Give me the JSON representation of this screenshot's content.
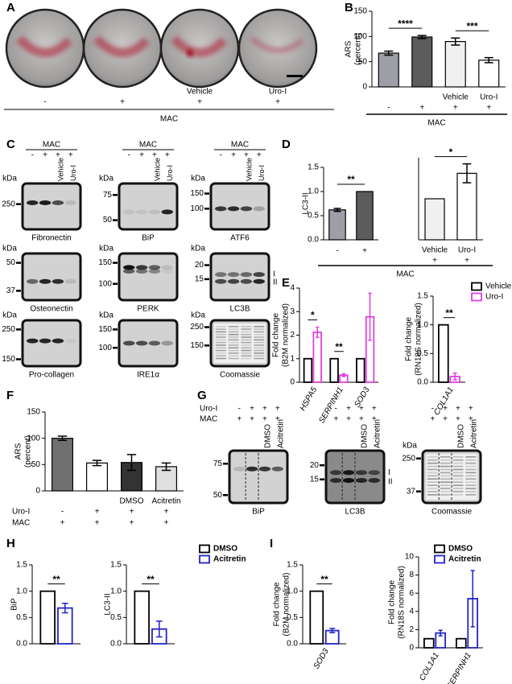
{
  "panels": {
    "letters": [
      "A",
      "B",
      "C",
      "D",
      "E",
      "F",
      "G",
      "H",
      "I"
    ],
    "A": {
      "lanes": [
        "-",
        "+",
        "+",
        "+"
      ],
      "treatments": [
        "Vehicle",
        "Uro-I"
      ],
      "group_label": "MAC"
    },
    "C": {
      "columns": [
        {
          "group_label": "MAC",
          "lanes": [
            "-",
            "+",
            "+",
            "+"
          ],
          "treatments": [
            "Vehicle",
            "Uro-I"
          ]
        },
        {
          "group_label": "MAC",
          "lanes": [
            "-",
            "+",
            "+",
            "+"
          ],
          "treatments": [
            "Vehicle",
            "Uro-I"
          ]
        },
        {
          "group_label": "MAC",
          "lanes": [
            "-",
            "+",
            "+",
            "+"
          ],
          "treatments": [
            "Vehicle",
            "Uro-I"
          ]
        }
      ],
      "blots": [
        {
          "label": "Fibronectin",
          "unit": "kDa",
          "markers": [
            "250"
          ]
        },
        {
          "label": "BiP",
          "unit": "kDa",
          "markers": [
            "75",
            "50"
          ]
        },
        {
          "label": "ATF6",
          "unit": "kDa",
          "markers": [
            "150",
            "100"
          ]
        },
        {
          "label": "Osteonectin",
          "unit": "kDa",
          "markers": [
            "50",
            "37"
          ]
        },
        {
          "label": "PERK",
          "unit": "kDa",
          "markers": [
            "150",
            "100"
          ]
        },
        {
          "label": "LC3B",
          "unit": "kDa",
          "markers": [
            "20",
            "15"
          ],
          "side_labels": [
            "I",
            "II"
          ]
        },
        {
          "label": "Pro-collagen",
          "unit": "kDa",
          "markers": [
            "250",
            "150"
          ]
        },
        {
          "label": "IRE1α",
          "unit": "kDa",
          "markers": [
            "150",
            "100"
          ]
        },
        {
          "label": "Coomassie",
          "unit": "kDa",
          "markers": [
            "250",
            "150"
          ]
        }
      ]
    },
    "G": {
      "row_names": [
        "Uro-I",
        "MAC"
      ],
      "columns": [
        {
          "rows": [
            [
              "-",
              "+",
              "+",
              "+"
            ],
            [
              "+",
              "+",
              "+",
              "+"
            ]
          ],
          "treatments": [
            "DMSO",
            "Acitretin"
          ]
        },
        {
          "rows": [
            [
              "-",
              "+",
              "+",
              "+"
            ],
            [
              "+",
              "+",
              "+",
              "+"
            ]
          ],
          "treatments": [
            "DMSO",
            "Acitretin"
          ]
        },
        {
          "rows": [
            [
              "-",
              "+",
              "+",
              "+"
            ],
            [
              "+",
              "+",
              "+",
              "+"
            ]
          ],
          "treatments": [
            "DMSO",
            "Acitretin"
          ]
        }
      ],
      "blots": [
        {
          "label": "BiP",
          "markers": [
            "75",
            "50"
          ]
        },
        {
          "label": "LC3B",
          "markers": [
            "20",
            "15"
          ],
          "side_labels": [
            "I",
            "II"
          ]
        },
        {
          "label": "Coomassie",
          "unit": "kDa",
          "markers": [
            "250",
            "37"
          ]
        }
      ]
    }
  },
  "chart_data": [
    {
      "type": "bar",
      "y_label": [
        "ARS",
        "(percent)"
      ],
      "ylim": [
        0,
        150
      ],
      "yticks": [
        0,
        50,
        100,
        150
      ],
      "categories": [
        "-",
        "+",
        "+",
        "+"
      ],
      "treatments": [
        null,
        null,
        "Vehicle",
        "Uro-I"
      ],
      "values": [
        67,
        99,
        90,
        53
      ],
      "errors": [
        4,
        3,
        7,
        5
      ],
      "colors": [
        "#9e9ea6",
        "#5c5c5c",
        "#f0f0f0",
        "#ffffff"
      ],
      "significance": [
        "****",
        "***"
      ],
      "group_label": "MAC"
    },
    {
      "type": "bar",
      "y_label": [
        "LC3-II"
      ],
      "ylim": [
        0,
        1.5
      ],
      "yticks": [
        {
          "value": 0,
          "label": "0.0"
        },
        0.5,
        {
          "value": 1,
          "label": "1.0"
        },
        1.5
      ],
      "categories": [
        "-",
        "+"
      ],
      "values": [
        0.62,
        1.0
      ],
      "errors": [
        0.03,
        null
      ],
      "colors": [
        "#9e9ea6",
        "#5c5c5c"
      ],
      "significance": [
        "**"
      ],
      "group_label": "MAC"
    },
    {
      "type": "bar",
      "ylim": [
        0,
        2
      ],
      "categories": [
        "+",
        "+"
      ],
      "treatments": [
        "Vehicle",
        "Uro-I"
      ],
      "values": [
        1.0,
        1.62
      ],
      "errors": [
        null,
        0.23
      ],
      "colors": [
        "#f0f0f0",
        "#ffffff"
      ],
      "significance": [
        "*"
      ]
    },
    {
      "type": "bar",
      "y_label": [
        "Fold change",
        "(B2M normalized)"
      ],
      "ylim": [
        0,
        4
      ],
      "yticks": [
        0,
        1,
        2,
        3,
        4
      ],
      "categories": [
        "HSPA5",
        "SERPINH1",
        "SOD3"
      ],
      "series": [
        {
          "color": "#000000",
          "values": [
            1,
            1,
            1
          ]
        },
        {
          "color": "#e040e0",
          "values": [
            2.12,
            0.3,
            2.78
          ],
          "errors": [
            0.22,
            0.06,
            1.0
          ]
        }
      ],
      "significance": [
        "*",
        "**"
      ]
    },
    {
      "type": "bar",
      "y_label": [
        "Fold change",
        "(RN18S normalized)"
      ],
      "ylim": [
        0,
        1.5
      ],
      "yticks": [
        {
          "value": 0,
          "label": "0.0"
        },
        0.5,
        {
          "value": 1,
          "label": "1.0"
        },
        1.5
      ],
      "categories": [
        "COL1A1"
      ],
      "series": [
        {
          "name": "Vehicle",
          "color": "#000000",
          "values": [
            1.0
          ]
        },
        {
          "name": "Uro-I",
          "color": "#e040e0",
          "values": [
            0.1
          ],
          "errors": [
            0.06
          ]
        }
      ],
      "significance": [
        "**"
      ]
    },
    {
      "type": "bar",
      "y_label": [
        "ARS",
        "(percent)"
      ],
      "ylim": [
        0,
        150
      ],
      "yticks": [
        0,
        50,
        100,
        150
      ],
      "rows": [
        {
          "name": "Uro-I",
          "labels": [
            "-",
            "+",
            "+",
            "+"
          ]
        },
        {
          "name": "MAC",
          "labels": [
            "+",
            "+",
            "+",
            "+"
          ]
        }
      ],
      "treatments": [
        null,
        null,
        "DMSO",
        "Acitretin"
      ],
      "values": [
        100,
        53,
        54,
        46
      ],
      "errors": [
        4,
        5,
        15,
        7
      ],
      "colors": [
        "#707070",
        "#ffffff",
        "#333333",
        "#e0e0e0"
      ]
    },
    {
      "type": "bar",
      "y_label": [
        "BiP"
      ],
      "ylim": [
        0,
        1.5
      ],
      "yticks": [
        {
          "value": 0,
          "label": "0.0"
        },
        0.5,
        {
          "value": 1,
          "label": "1.0"
        },
        1.5
      ],
      "series": [
        {
          "color": "#000000",
          "values": [
            1.0
          ]
        },
        {
          "color": "#2222cc",
          "values": [
            0.68
          ],
          "errors": [
            0.09
          ]
        }
      ],
      "significance": [
        "**"
      ]
    },
    {
      "type": "bar",
      "y_label": [
        "LC3-II"
      ],
      "ylim": [
        0,
        1.5
      ],
      "yticks": [
        {
          "value": 0,
          "label": "0.0"
        },
        0.5,
        {
          "value": 1,
          "label": "1.0"
        },
        1.5
      ],
      "series": [
        {
          "name": "DMSO",
          "color": "#000000",
          "values": [
            1.0
          ]
        },
        {
          "name": "Acitretin",
          "color": "#2222cc",
          "values": [
            0.28
          ],
          "errors": [
            0.15
          ]
        }
      ],
      "significance": [
        "**"
      ]
    },
    {
      "type": "bar",
      "y_label": [
        "Fold change",
        "(B2M normalized)"
      ],
      "ylim": [
        0,
        1.5
      ],
      "yticks": [
        {
          "value": 0,
          "label": "0.0"
        },
        0.5,
        {
          "value": 1,
          "label": "1.0"
        },
        1.5
      ],
      "categories": [
        "SOD3"
      ],
      "series": [
        {
          "color": "#000000",
          "values": [
            1.0
          ]
        },
        {
          "color": "#2222cc",
          "values": [
            0.25
          ],
          "errors": [
            0.04
          ]
        }
      ],
      "significance": [
        "**"
      ]
    },
    {
      "type": "bar",
      "y_label": [
        "Fold change",
        "(RN18S normalized)"
      ],
      "ylim": [
        0,
        10
      ],
      "yticks": [
        0,
        2,
        4,
        6,
        8,
        10
      ],
      "categories": [
        "COL1A1",
        "SERPINH1"
      ],
      "series": [
        {
          "name": "DMSO",
          "color": "#000000",
          "values": [
            1,
            1
          ]
        },
        {
          "name": "Acitretin",
          "color": "#2222cc",
          "values": [
            1.62,
            5.4
          ],
          "errors": [
            0.3,
            3.1
          ]
        }
      ]
    }
  ]
}
